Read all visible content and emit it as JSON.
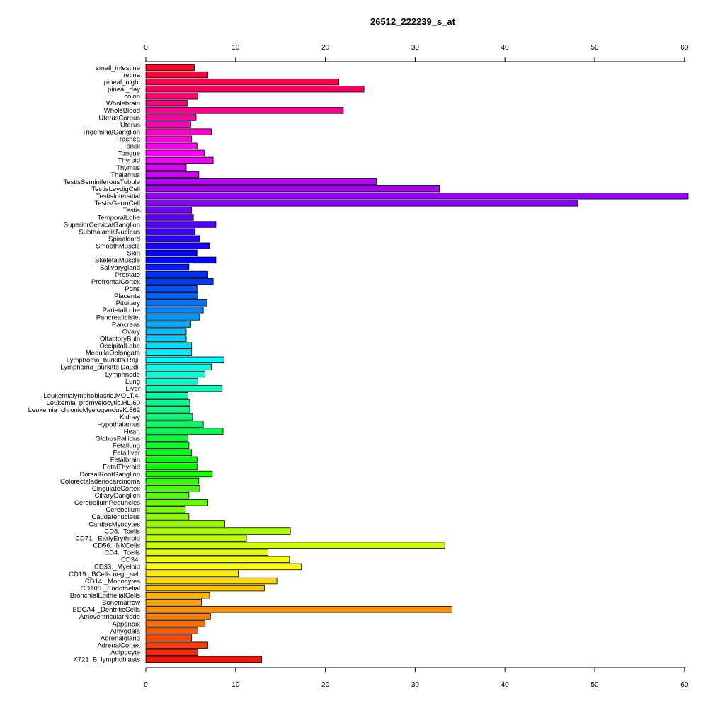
{
  "chart_data": {
    "type": "bar",
    "orientation": "horizontal",
    "title": "26512_222239_s_at",
    "xlabel": "",
    "ylabel": "",
    "xlim": [
      0,
      60
    ],
    "xticks": [
      0,
      10,
      20,
      30,
      40,
      50,
      60
    ],
    "grid": false,
    "legend": "none",
    "categories": [
      "small_intestine",
      "retina",
      "pineal_night",
      "pineal_day",
      "colon",
      "Wholebrain",
      "WholeBlood",
      "UterusCorpus",
      "Uterus",
      "TrigeminalGanglion",
      "Trachea",
      "Tonsil",
      "Tongue",
      "Thyroid",
      "Thymus",
      "Thalamus",
      "TestisSeminiferousTubule",
      "TestisLeydigCell",
      "TestisIntersitial",
      "TestisGermCell",
      "Testis",
      "TemporalLobe",
      "SuperiorCervicalGanglion",
      "SubthalamicNucleus",
      "Spinalcord",
      "SmoothMuscle",
      "Skin",
      "SkeletalMuscle",
      "Salivarygland",
      "Prostate",
      "PrefrontalCortex",
      "Pons",
      "Placenta",
      "Pituitary",
      "ParietalLobe",
      "PancreaticIslet",
      "Pancreas",
      "Ovary",
      "OlfactoryBulb",
      "OccipitalLobe",
      "MedullaOblongata",
      "Lymphoma_burkitts.Raji.",
      "Lymphoma_burkitts.Daudi.",
      "Lymphnode",
      "Lung",
      "Liver",
      "Leukemialymphoblastic.MOLT.4.",
      "Leukemia_promyelocytic.HL.60",
      "Leukemia_chronicMyelogenousK.562",
      "Kidney",
      "Hypothalamus",
      "Heart",
      "GlobusPallidus",
      "Fetallung",
      "Fetalliver",
      "Fetalbrain",
      "FetalThyroid",
      "DorsalRootGanglion",
      "Colorectaladenocarcinoma",
      "CingulateCortex",
      "CiliaryGanglion",
      "CerebellumPeduncles",
      "Cerebellum",
      "Caudatenucleus",
      "CardiacMyocytes",
      "CD8._Tcells",
      "CD71._EarlyErythroid",
      "CD56._NKCells",
      "CD4._Tcells",
      "CD34.",
      "CD33._Myeloid",
      "CD19._BCells.neg._sel.",
      "CD14._Monocytes",
      "CD105._Endothelial",
      "BronchialEpithelialCells",
      "Bonemarrow",
      "BDCA4._DentriticCells",
      "AtrioventricularNode",
      "Appendix",
      "Amygdala",
      "Adrenalgland",
      "AdrenalCortex",
      "Adipocyte",
      "X721_B_lymphoblasts"
    ],
    "values": [
      5.4,
      6.9,
      21.5,
      24.3,
      5.8,
      4.6,
      22.0,
      5.6,
      5.0,
      7.3,
      5.1,
      5.7,
      6.5,
      7.5,
      4.5,
      5.9,
      25.7,
      32.7,
      60.5,
      48.1,
      5.1,
      5.3,
      7.8,
      5.5,
      6.0,
      7.1,
      5.7,
      7.8,
      4.8,
      6.9,
      7.5,
      5.7,
      5.8,
      6.8,
      6.4,
      6.0,
      5.0,
      4.5,
      4.5,
      5.1,
      5.1,
      8.7,
      7.3,
      6.6,
      5.8,
      8.5,
      4.7,
      4.9,
      4.9,
      5.2,
      6.4,
      8.6,
      4.7,
      4.8,
      5.1,
      5.7,
      5.7,
      7.4,
      5.9,
      6.0,
      4.8,
      6.9,
      4.4,
      4.8,
      8.8,
      16.1,
      11.2,
      33.3,
      13.6,
      16.0,
      17.3,
      10.3,
      14.6,
      13.2,
      7.1,
      6.2,
      34.1,
      7.2,
      6.6,
      5.8,
      5.1,
      6.9,
      5.8,
      12.9
    ]
  }
}
